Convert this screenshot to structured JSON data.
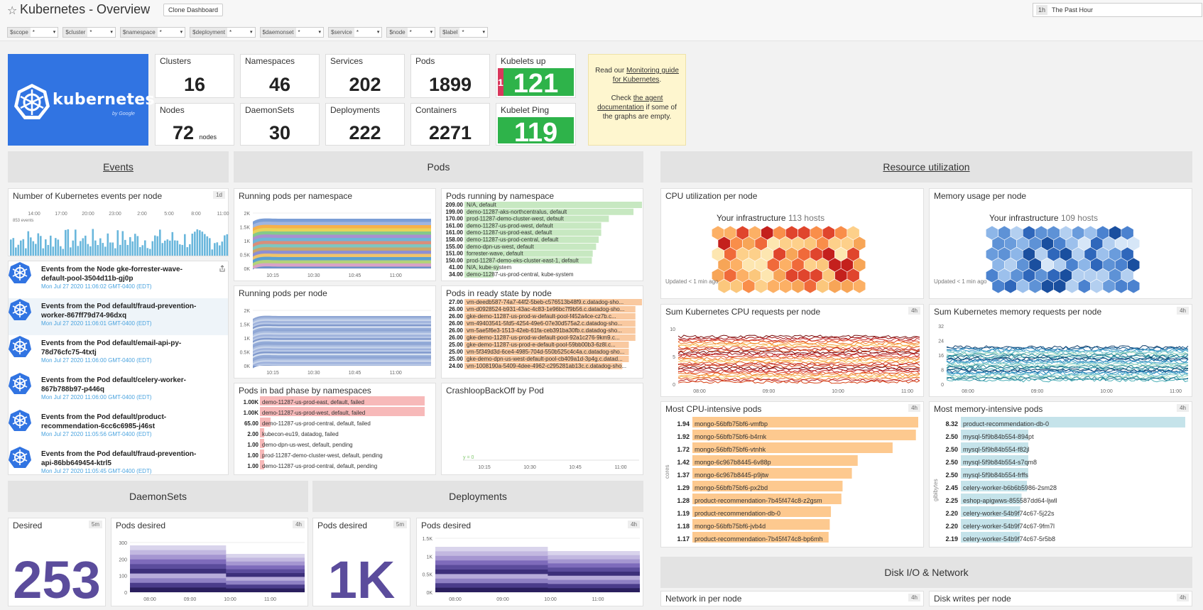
{
  "header": {
    "title": "Kubernetes - Overview",
    "clone_label": "Clone Dashboard",
    "time_abbr": "1h",
    "time_label": "The Past Hour"
  },
  "variables": [
    {
      "key": "$scope",
      "value": "*"
    },
    {
      "key": "$cluster",
      "value": "*"
    },
    {
      "key": "$namespace",
      "value": "*"
    },
    {
      "key": "$deployment",
      "value": "*"
    },
    {
      "key": "$daemonset",
      "value": "*"
    },
    {
      "key": "$service",
      "value": "*"
    },
    {
      "key": "$node",
      "value": "*"
    },
    {
      "key": "$label",
      "value": "*"
    }
  ],
  "logo": {
    "word": "kubernetes",
    "sub": "by Google"
  },
  "stats": {
    "clusters": {
      "label": "Clusters",
      "value": "16"
    },
    "namespaces": {
      "label": "Namespaces",
      "value": "46"
    },
    "services": {
      "label": "Services",
      "value": "202"
    },
    "pods": {
      "label": "Pods",
      "value": "1899"
    },
    "kubelets_up": {
      "label": "Kubelets up",
      "value": "121",
      "red": "1"
    },
    "nodes": {
      "label": "Nodes",
      "value": "72",
      "unit": "nodes"
    },
    "daemonsets": {
      "label": "DaemonSets",
      "value": "30"
    },
    "deployments": {
      "label": "Deployments",
      "value": "222"
    },
    "containers": {
      "label": "Containers",
      "value": "2271"
    },
    "kubelet_ping": {
      "label": "Kubelet Ping",
      "value": "119"
    }
  },
  "note": {
    "line1": "Read our ",
    "link1": "Monitoring guide for Kubernetes",
    "line2": ".",
    "line3": "Check ",
    "link2": "the agent documentation",
    "line4": " if some of the graphs are empty."
  },
  "sections": {
    "events": "Events",
    "pods": "Pods",
    "resource": "Resource utilization",
    "daemonsets": "DaemonSets",
    "deployments": "Deployments",
    "disk": "Disk I/O & Network"
  },
  "panels": {
    "events_per_node": {
      "title": "Number of Kubernetes events per node",
      "badge": "1d",
      "count_label": "853 events",
      "ticks": [
        "14:00",
        "17:00",
        "20:00",
        "23:00",
        "2:00",
        "5:00",
        "8:00",
        "11:00"
      ]
    },
    "running_ns": {
      "title": "Running pods per namespace"
    },
    "pods_by_ns": {
      "title": "Pods running by namespace"
    },
    "running_node": {
      "title": "Running pods per node"
    },
    "ready_node": {
      "title": "Pods in ready state by node"
    },
    "bad_phase": {
      "title": "Pods in bad phase by namespaces"
    },
    "crashloop": {
      "title": "CrashloopBackOff by Pod",
      "y_label": "y = 0"
    },
    "cpu_util": {
      "title": "CPU utilization per node",
      "infra": "Your infrastructure",
      "hosts": "113 hosts",
      "updated": "Updated < 1 min ago"
    },
    "mem_usage": {
      "title": "Memory usage per node",
      "infra": "Your infrastructure",
      "hosts": "109 hosts",
      "updated": "Updated < 1 min ago"
    },
    "cpu_req": {
      "title": "Sum Kubernetes CPU requests per node",
      "badge": "4h"
    },
    "mem_req": {
      "title": "Sum Kubernetes memory requests per node",
      "badge": "4h"
    },
    "cpu_pods": {
      "title": "Most CPU-intensive pods",
      "badge": "4h",
      "axis": "cores"
    },
    "mem_pods": {
      "title": "Most memory-intensive pods",
      "badge": "4h",
      "axis": "gibibytes"
    },
    "ds_desired": {
      "title": "Desired",
      "badge": "5m",
      "value": "253"
    },
    "ds_pods": {
      "title": "Pods desired",
      "badge": "4h"
    },
    "dep_desired": {
      "title": "Pods desired",
      "badge": "5m",
      "value": "1K"
    },
    "dep_pods": {
      "title": "Pods desired",
      "badge": "4h"
    },
    "net_in": {
      "title": "Network in per node",
      "badge": "4h"
    },
    "disk_writes": {
      "title": "Disk writes per node",
      "badge": "4h"
    }
  },
  "events": [
    {
      "title": "Events from the Node gke-forrester-wave-default-pool-3504d11b-gj0p",
      "time": "Mon Jul 27 2020 11:06:02 GMT-0400 (EDT)"
    },
    {
      "title": "Events from the Pod default/fraud-prevention-worker-867ff79d74-96dxq",
      "time": "Mon Jul 27 2020 11:06:01 GMT-0400 (EDT)"
    },
    {
      "title": "Events from the Pod default/email-api-py-78d76cfc75-4txtj",
      "time": "Mon Jul 27 2020 11:06:00 GMT-0400 (EDT)"
    },
    {
      "title": "Events from the Pod default/celery-worker-867b788b97-p446q",
      "time": "Mon Jul 27 2020 11:06:00 GMT-0400 (EDT)"
    },
    {
      "title": "Events from the Pod default/product-recommendation-6cc6c6985-j46st",
      "time": "Mon Jul 27 2020 11:05:56 GMT-0400 (EDT)"
    },
    {
      "title": "Events from the Pod default/fraud-prevention-api-86bb649454-ktrl5",
      "time": "Mon Jul 27 2020 11:05:45 GMT-0400 (EDT)"
    }
  ],
  "chart_data": [
    {
      "type": "bar",
      "title": "Pods running by namespace",
      "categories": [
        "N/A, default",
        "demo-11287-aks-northcentralus, default",
        "prod-11287-demo-cluster-west, default",
        "demo-11287-us-prod-west, default",
        "demo-11287-us-prod-east, default",
        "demo-11287-us-prod-central, default",
        "demo-dpn-us-west, default",
        "forrester-wave, default",
        "prod-11287-demo-eks-cluster-east-1, default",
        "N/A, kube-system",
        "demo-11287-us-prod-central, kube-system"
      ],
      "values": [
        209.0,
        199.0,
        170.0,
        161.0,
        161.0,
        158.0,
        155.0,
        151.0,
        150.0,
        41.0,
        34.0
      ],
      "labels": [
        "209.00",
        "199.00",
        "170.00",
        "161.00",
        "161.00",
        "158.00",
        "155.00",
        "151.00",
        "150.00",
        "41.00",
        "34.00"
      ],
      "max": 209,
      "color": "#c7e8c1"
    },
    {
      "type": "bar",
      "title": "Pods in ready state by node",
      "categories": [
        "vm-deedb587-74a7-44f2-5beb-c576513b48f9.c.datadog-sho...",
        "vm-d0928524-b931-43ac-4c83-1e96bc7f9b56.c.datadog-sho...",
        "gke-demo-11287-us-prod-w-default-pool-f452a4ce-cz7b.c...",
        "vm-49403541-5fd5-4254-49e6-07e30d575a2.c.datadog-sho...",
        "vm-5ae5f6e3-1513-42eb-61fa-ceb391ba30fb.c.datadog-sho...",
        "gke-demo-11287-us-prod-w-default-pool-92a1c276-9km9.c...",
        "gke-demo-11287-us-prod-e-default-pool-59bb00b3-6z8l.c...",
        "vm-5f349d3d-6ce4-4985-704d-550b525c4c4a.c.datadog-sho...",
        "gke-demo-dpn-us-west-default-pool-cb409a1d-3p4g.c.datad...",
        "vm-1008190a-5409-4dee-4962-c295281ab13c.c.datadog-sho..."
      ],
      "values": [
        27.0,
        26.0,
        26.0,
        26.0,
        26.0,
        26.0,
        25.0,
        25.0,
        25.0,
        24.0
      ],
      "labels": [
        "27.00",
        "26.00",
        "26.00",
        "26.00",
        "26.00",
        "26.00",
        "25.00",
        "25.00",
        "25.00",
        "24.00"
      ],
      "max": 27,
      "color": "#f9c9a0"
    },
    {
      "type": "bar",
      "title": "Pods in bad phase by namespaces",
      "categories": [
        "demo-11287-us-prod-east, default, failed",
        "demo-11287-us-prod-west, default, failed",
        "demo-11287-us-prod-central, default, failed",
        "kubecon-eu19, datadog, failed",
        "demo-dpn-us-west, default, pending",
        "prod-11287-demo-cluster-west, default, pending",
        "demo-11287-us-prod-central, default, pending"
      ],
      "values": [
        1000,
        1000,
        65,
        2,
        1,
        1,
        1
      ],
      "labels": [
        "1.00K",
        "1.00K",
        "65.00",
        "2.00",
        "1.00",
        "1.00",
        "1.00"
      ],
      "max": 1000,
      "color": "#f7b9b9"
    },
    {
      "type": "bar",
      "title": "Most CPU-intensive pods",
      "categories": [
        "mongo-56bfb75bf6-vmfbp",
        "mongo-56bfb75bf6-b4rnk",
        "mongo-56bfb75bf6-vtnhk",
        "mongo-6c967b8445-6v88p",
        "mongo-6c967b8445-p9jtw",
        "mongo-56bfb75bf6-px2bd",
        "product-recommendation-7b45f474c8-z2gsm",
        "product-recommendation-db-0",
        "mongo-56bfb75bf6-jvb4d",
        "product-recommendation-7b45f474c8-bp6mh"
      ],
      "values": [
        1.94,
        1.92,
        1.72,
        1.42,
        1.37,
        1.29,
        1.28,
        1.19,
        1.18,
        1.17
      ],
      "labels": [
        "1.94",
        "1.92",
        "1.72",
        "1.42",
        "1.37",
        "1.29",
        "1.28",
        "1.19",
        "1.18",
        "1.17"
      ],
      "max": 1.94,
      "color": "#fdc98f"
    },
    {
      "type": "bar",
      "title": "Most memory-intensive pods",
      "categories": [
        "product-recommendation-db-0",
        "mysql-5f9b84b554-894pt",
        "mysql-5f9b84b554-f82jl",
        "mysql-5f9b84b554-s7qm8",
        "mysql-5f9b84b554-frffs",
        "celery-worker-b6b6b5986-2sm28",
        "eshop-apigwws-855587dd64-ljwll",
        "celery-worker-54b9f74c67-5j22s",
        "celery-worker-54b9f74c67-9fm7l",
        "celery-worker-54b9f74c67-5r5b8"
      ],
      "values": [
        8.32,
        2.5,
        2.5,
        2.5,
        2.5,
        2.45,
        2.25,
        2.2,
        2.2,
        2.19
      ],
      "labels": [
        "8.32",
        "2.50",
        "2.50",
        "2.50",
        "2.50",
        "2.45",
        "2.25",
        "2.20",
        "2.20",
        "2.19"
      ],
      "max": 8.32,
      "color": "#c5e3ea"
    },
    {
      "type": "area",
      "title": "Running pods per namespace",
      "x": [
        "10:15",
        "10:30",
        "10:45",
        "11:00"
      ],
      "yticks": [
        "0K",
        "0.5K",
        "1K",
        "1.5K",
        "2K"
      ],
      "ylim": [
        0,
        2000
      ]
    },
    {
      "type": "area",
      "title": "Running pods per node",
      "x": [
        "10:15",
        "10:30",
        "10:45",
        "11:00"
      ],
      "yticks": [
        "0K",
        "0.5K",
        "1K",
        "1.5K",
        "2K"
      ],
      "ylim": [
        0,
        2000
      ]
    },
    {
      "type": "line",
      "title": "CrashloopBackOff by Pod",
      "x": [
        "10:15",
        "10:30",
        "10:45",
        "11:00"
      ]
    },
    {
      "type": "line",
      "title": "Sum Kubernetes CPU requests per node",
      "x": [
        "08:00",
        "09:00",
        "10:00",
        "11:00"
      ],
      "yticks": [
        "0",
        "5",
        "10"
      ],
      "ylim": [
        0,
        10
      ]
    },
    {
      "type": "line",
      "title": "Sum Kubernetes memory requests per node",
      "x": [
        "08:00",
        "09:00",
        "10:00",
        "11:00"
      ],
      "yticks": [
        "0",
        "8",
        "16",
        "24",
        "32"
      ],
      "ylim": [
        0,
        32
      ]
    },
    {
      "type": "area",
      "title": "Pods desired",
      "x": [
        "08:00",
        "09:00",
        "10:00",
        "11:00"
      ],
      "yticks": [
        "0",
        "100",
        "200",
        "300"
      ],
      "ylim": [
        0,
        300
      ]
    },
    {
      "type": "area",
      "title": "Pods desired",
      "x": [
        "08:00",
        "09:00",
        "10:00",
        "11:00"
      ],
      "yticks": [
        "0K",
        "0.5K",
        "1K",
        "1.5K"
      ],
      "ylim": [
        0,
        1500
      ]
    }
  ],
  "colors": {
    "logo_blue": "#3174e2",
    "green": "#2eb34a",
    "red": "#d9375c",
    "purple": "#5b4c9c",
    "link_blue": "#4aa3df"
  }
}
